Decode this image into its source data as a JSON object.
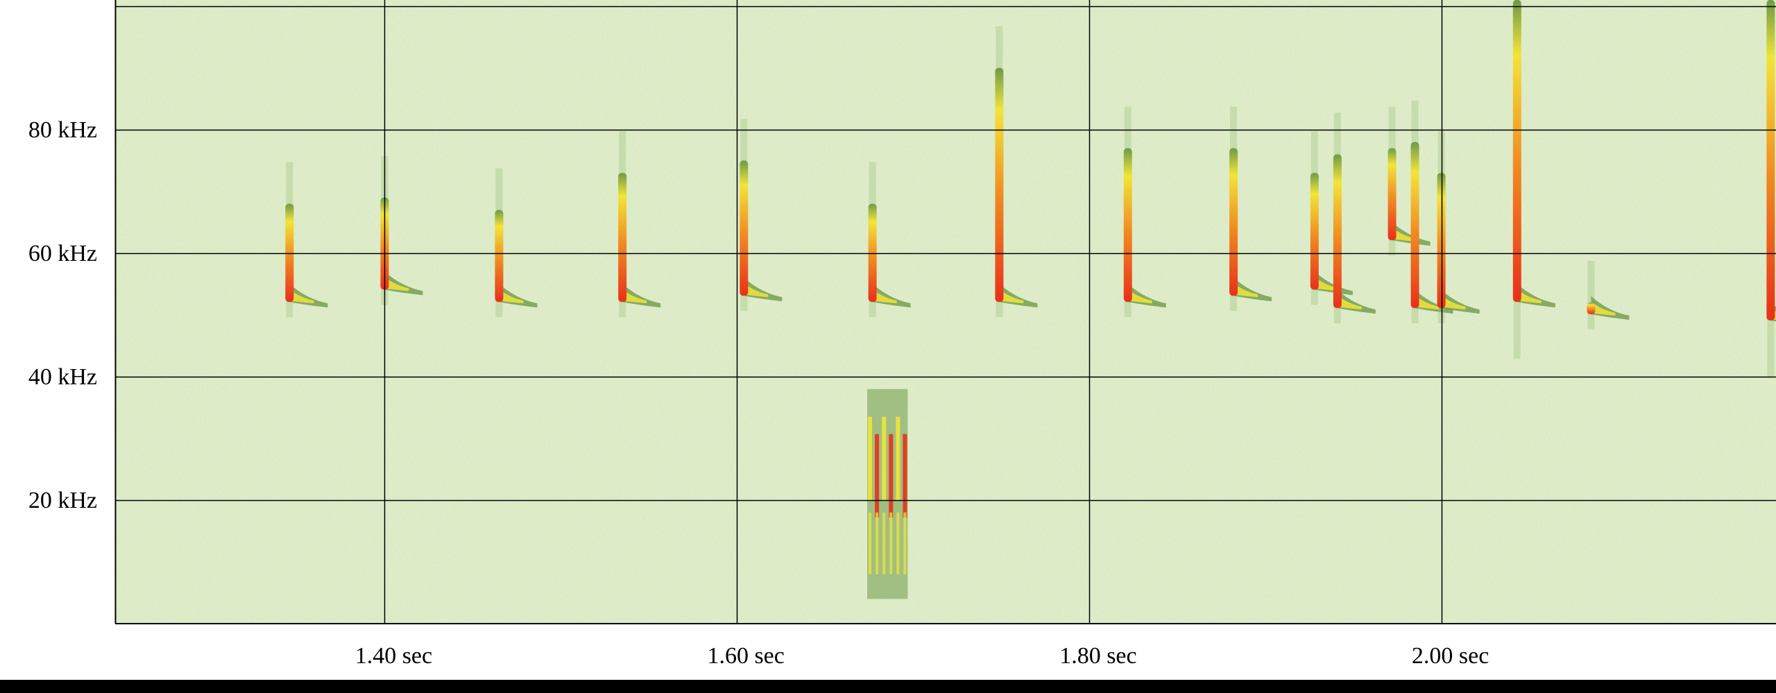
{
  "chart_data": {
    "type": "heatmap",
    "title": "",
    "xlabel": "",
    "ylabel": "",
    "xlim": [
      1.247,
      2.19
    ],
    "ylim": [
      0,
      101
    ],
    "grid": true,
    "x_ticks": [
      {
        "value": 1.4,
        "label": "1.40 sec"
      },
      {
        "value": 1.6,
        "label": "1.60 sec"
      },
      {
        "value": 1.8,
        "label": "1.80 sec"
      },
      {
        "value": 2.0,
        "label": "2.00 sec"
      }
    ],
    "y_ticks": [
      {
        "value": 20,
        "label": "20 kHz"
      },
      {
        "value": 40,
        "label": "40 kHz"
      },
      {
        "value": 60,
        "label": "60 kHz"
      },
      {
        "value": 80,
        "label": "80 kHz"
      }
    ],
    "colors": {
      "background": "#dcebc6",
      "low": "#6f9a48",
      "mid": "#f2e43a",
      "high": "#e8301a",
      "grid": "#000000"
    },
    "calls": [
      {
        "t": 1.346,
        "f_top": 68,
        "f_bottom": 53
      },
      {
        "t": 1.4,
        "f_top": 69,
        "f_bottom": 55
      },
      {
        "t": 1.465,
        "f_top": 67,
        "f_bottom": 53
      },
      {
        "t": 1.535,
        "f_top": 73,
        "f_bottom": 53
      },
      {
        "t": 1.604,
        "f_top": 75,
        "f_bottom": 54
      },
      {
        "t": 1.677,
        "f_top": 68,
        "f_bottom": 53
      },
      {
        "t": 1.749,
        "f_top": 90,
        "f_bottom": 53
      },
      {
        "t": 1.822,
        "f_top": 77,
        "f_bottom": 53
      },
      {
        "t": 1.882,
        "f_top": 77,
        "f_bottom": 54
      },
      {
        "t": 1.928,
        "f_top": 73,
        "f_bottom": 55
      },
      {
        "t": 1.941,
        "f_top": 76,
        "f_bottom": 52
      },
      {
        "t": 1.972,
        "f_top": 77,
        "f_bottom": 63
      },
      {
        "t": 1.985,
        "f_top": 78,
        "f_bottom": 52
      },
      {
        "t": 2.0,
        "f_top": 73,
        "f_bottom": 52
      },
      {
        "t": 2.043,
        "f_top": 101,
        "f_bottom": 53
      },
      {
        "t": 2.085,
        "f_top": 52,
        "f_bottom": 51
      },
      {
        "t": 2.187,
        "f_top": 101,
        "f_bottom": 50
      }
    ],
    "broadband_event": {
      "t_start": 1.674,
      "t_end": 1.697,
      "f_low": 4,
      "f_high": 38
    }
  }
}
